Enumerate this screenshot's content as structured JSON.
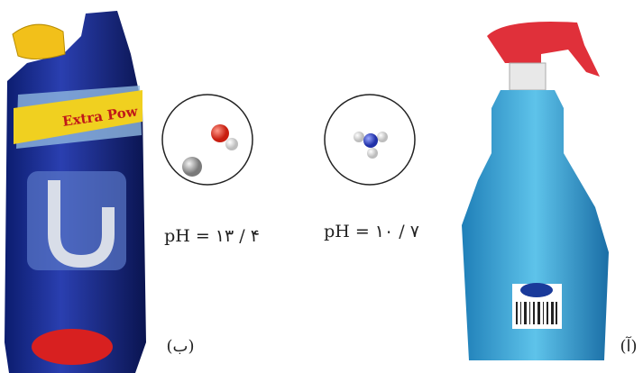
{
  "panels": [
    {
      "label": "(آ)",
      "ph": "pH = ۱۰ / ۷"
    },
    {
      "label": "(ب)",
      "ph": "pH = ۱۳ / ۴",
      "bottle_text": "Extra Pow"
    }
  ]
}
